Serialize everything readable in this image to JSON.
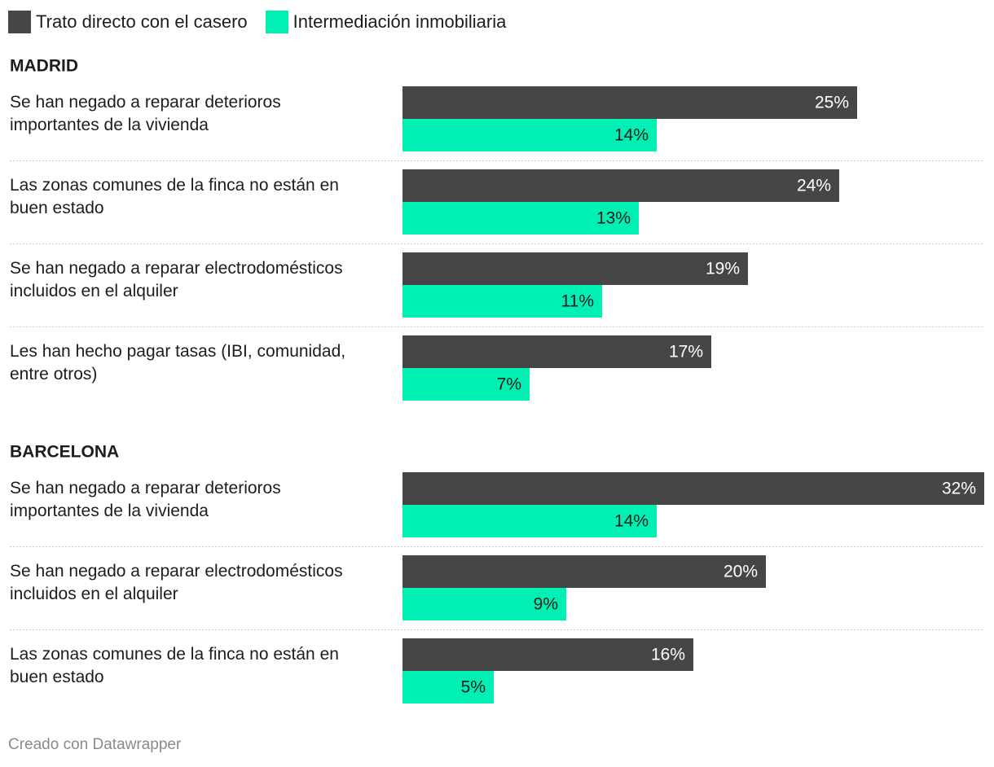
{
  "colors": {
    "series_direct": "#464646",
    "series_agency": "#00f0b4",
    "label_on_dark": "#ffffff",
    "label_on_light": "#1d1d1d",
    "separator": "#c8c8c8"
  },
  "legend": {
    "items": [
      {
        "label": "Trato directo con el casero"
      },
      {
        "label": "Intermediación inmobiliaria"
      }
    ]
  },
  "footer": {
    "credit": "Creado con Datawrapper"
  },
  "chart_data": {
    "type": "bar",
    "orientation": "horizontal",
    "value_suffix": "%",
    "xlim": [
      0,
      32
    ],
    "series": [
      {
        "name": "Trato directo con el casero"
      },
      {
        "name": "Intermediación inmobiliaria"
      }
    ],
    "groups": [
      {
        "title": "MADRID",
        "rows": [
          {
            "label": [
              "Se han negado a reparar deterioros",
              "importantes de la vivienda"
            ],
            "values": [
              25,
              14
            ]
          },
          {
            "label": [
              "Las zonas comunes de la finca no están en",
              "buen estado"
            ],
            "values": [
              24,
              13
            ]
          },
          {
            "label": [
              "Se han negado a reparar electrodomésticos",
              "incluidos en el alquiler"
            ],
            "values": [
              19,
              11
            ]
          },
          {
            "label": [
              "Les han hecho pagar tasas (IBI, comunidad,",
              "entre otros)"
            ],
            "values": [
              17,
              7
            ]
          }
        ]
      },
      {
        "title": "BARCELONA",
        "rows": [
          {
            "label": [
              "Se han negado a reparar deterioros",
              "importantes de la vivienda"
            ],
            "values": [
              32,
              14
            ]
          },
          {
            "label": [
              "Se han negado a reparar electrodomésticos",
              "incluidos en el alquiler"
            ],
            "values": [
              20,
              9
            ]
          },
          {
            "label": [
              "Las zonas comunes de la finca no están en",
              "buen estado"
            ],
            "values": [
              16,
              5
            ]
          }
        ]
      }
    ]
  }
}
